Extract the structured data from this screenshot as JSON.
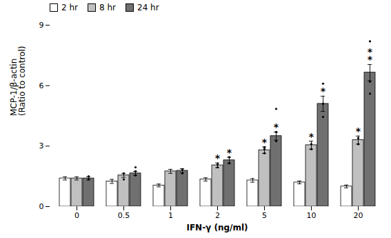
{
  "chart_data": {
    "type": "bar",
    "categories": [
      "0",
      "0.5",
      "1",
      "2",
      "5",
      "10",
      "20"
    ],
    "xlabel": "IFN-γ (ng/ml)",
    "ylabel": "MCP-1/β-actin\n(Ratio to control)",
    "series": [
      {
        "name": "2 hr",
        "color": "#ffffff",
        "values": [
          1.4,
          1.25,
          1.05,
          1.35,
          1.3,
          1.2,
          1.0
        ],
        "errors": [
          0.08,
          0.1,
          0.07,
          0.08,
          0.09,
          0.07,
          0.07
        ]
      },
      {
        "name": "8 hr",
        "color": "#c0c0c0",
        "values": [
          1.4,
          1.55,
          1.75,
          2.05,
          2.8,
          3.05,
          3.3
        ],
        "errors": [
          0.08,
          0.1,
          0.1,
          0.12,
          0.16,
          0.2,
          0.2
        ],
        "points": [
          [],
          [
            1.35,
            1.65
          ],
          [],
          [
            1.95,
            2.1
          ],
          [
            2.65,
            2.85,
            2.95
          ],
          [
            2.85,
            3.1
          ],
          [
            3.1,
            3.4
          ]
        ],
        "stars": [
          0,
          0,
          0,
          1,
          1,
          1,
          1
        ]
      },
      {
        "name": "24 hr",
        "color": "#707070",
        "values": [
          1.4,
          1.65,
          1.78,
          2.3,
          3.5,
          5.1,
          6.65
        ],
        "errors": [
          0.08,
          0.1,
          0.1,
          0.15,
          0.2,
          0.38,
          0.4
        ],
        "points": [
          [
            1.35,
            1.5
          ],
          [
            1.55,
            1.75,
            1.95
          ],
          [
            1.65,
            1.85
          ],
          [
            2.15,
            2.45
          ],
          [
            3.25,
            3.7,
            4.85
          ],
          [
            4.45,
            5.1,
            6.1
          ],
          [
            5.6,
            6.2,
            8.2
          ]
        ],
        "stars": [
          0,
          0,
          0,
          1,
          1,
          1,
          2
        ]
      }
    ],
    "star": "*",
    "ylim": [
      0,
      9
    ],
    "yticks": [
      0,
      3,
      6,
      9
    ],
    "grid": false,
    "legend": "upper left"
  }
}
